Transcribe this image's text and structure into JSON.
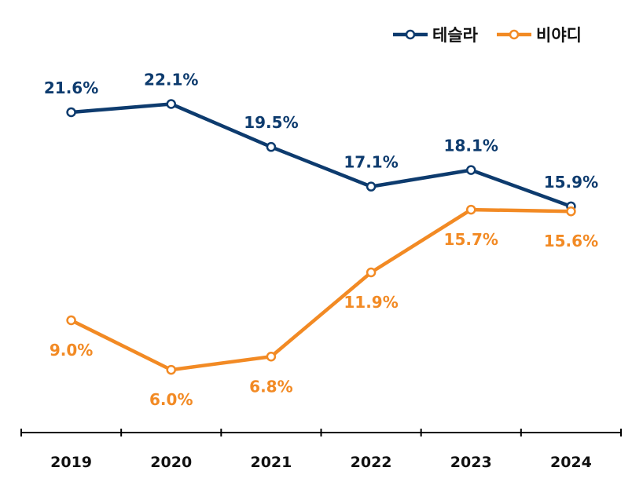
{
  "chart_data": {
    "type": "line",
    "categories": [
      "2019",
      "2020",
      "2021",
      "2022",
      "2023",
      "2024"
    ],
    "series": [
      {
        "name": "테슬라",
        "color": "#0d3b6e",
        "values": [
          21.6,
          22.1,
          19.5,
          17.1,
          18.1,
          15.9
        ],
        "labels": [
          "21.6%",
          "22.1%",
          "19.5%",
          "17.1%",
          "18.1%",
          "15.9%"
        ]
      },
      {
        "name": "비야디",
        "color": "#f28a24",
        "values": [
          9.0,
          6.0,
          6.8,
          11.9,
          15.7,
          15.6
        ],
        "labels": [
          "9.0%",
          "6.0%",
          "6.8%",
          "11.9%",
          "15.7%",
          "15.6%"
        ]
      }
    ],
    "ylim": [
      2.2,
      28.4
    ],
    "legend_position": "top-right",
    "grid": false
  }
}
